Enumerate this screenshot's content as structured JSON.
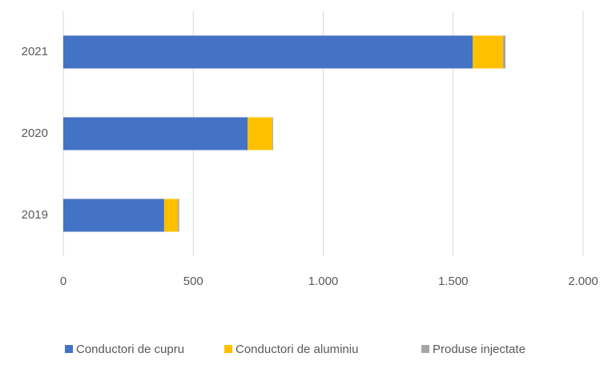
{
  "chart_data": {
    "type": "stacked-barh",
    "categories": [
      "2019",
      "2020",
      "2021"
    ],
    "series": [
      {
        "name": "Conductori de cupru",
        "color": "#4472c4",
        "values": [
          388,
          709,
          1575
        ]
      },
      {
        "name": "Conductori de aluminiu",
        "color": "#ffc000",
        "values": [
          53,
          95,
          117
        ]
      },
      {
        "name": "Produse injectate",
        "color": "#a5a5a5",
        "values": [
          5,
          3,
          9
        ]
      }
    ],
    "xlim": [
      0,
      2000
    ],
    "xticks": [
      0,
      500,
      {
        "value": 1000,
        "label": "1.000"
      },
      {
        "value": 1500,
        "label": "1.500"
      },
      {
        "value": 2000,
        "label": "2.000"
      }
    ],
    "grid": true,
    "legend": "bottom"
  }
}
